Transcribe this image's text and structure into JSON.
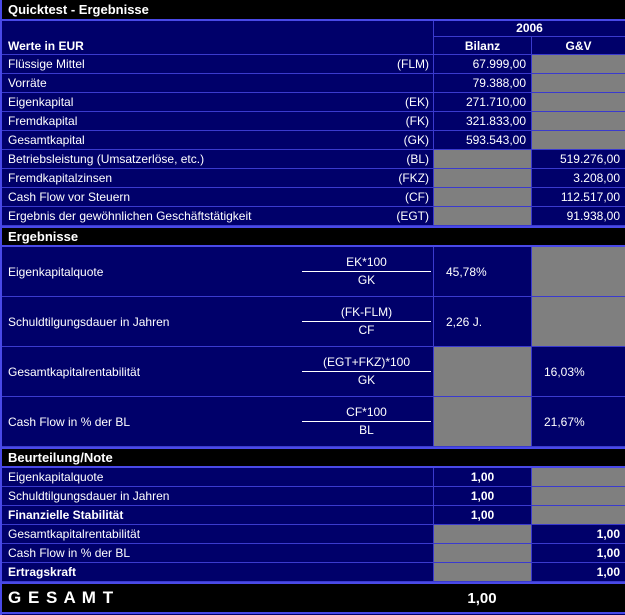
{
  "title": "Quicktest - Ergebnisse",
  "year": "2006",
  "columns": {
    "label": "Werte in EUR",
    "bilanz": "Bilanz",
    "gv": "G&V"
  },
  "werte_rows": [
    {
      "label": "Flüssige Mittel",
      "code": "(FLM)",
      "bilanz": "67.999,00",
      "gv": "",
      "gray": "gv"
    },
    {
      "label": "Vorräte",
      "code": "",
      "bilanz": "79.388,00",
      "gv": "",
      "gray": "gv"
    },
    {
      "label": "Eigenkapital",
      "code": "(EK)",
      "bilanz": "271.710,00",
      "gv": "",
      "gray": "gv"
    },
    {
      "label": "Fremdkapital",
      "code": "(FK)",
      "bilanz": "321.833,00",
      "gv": "",
      "gray": "gv"
    },
    {
      "label": "Gesamtkapital",
      "code": "(GK)",
      "bilanz": "593.543,00",
      "gv": "",
      "gray": "gv"
    },
    {
      "label": "Betriebsleistung (Umsatzerlöse, etc.)",
      "code": "(BL)",
      "bilanz": "",
      "gv": "519.276,00",
      "gray": "bilanz"
    },
    {
      "label": "Fremdkapitalzinsen",
      "code": "(FKZ)",
      "bilanz": "",
      "gv": "3.208,00",
      "gray": "bilanz"
    },
    {
      "label": "Cash Flow vor Steuern",
      "code": "(CF)",
      "bilanz": "",
      "gv": "112.517,00",
      "gray": "bilanz"
    },
    {
      "label": "Ergebnis der gewöhnlichen Geschäftstätigkeit",
      "code": "(EGT)",
      "bilanz": "",
      "gv": "91.938,00",
      "gray": "bilanz"
    }
  ],
  "ergebnisse": {
    "heading": "Ergebnisse",
    "rows": [
      {
        "label": "Eigenkapitalquote",
        "numerator": "EK*100",
        "denominator": "GK",
        "bilanz": "45,78%",
        "gv": "",
        "gray": "gv"
      },
      {
        "label": "Schuldtilgungsdauer in Jahren",
        "numerator": "(FK-FLM)",
        "denominator": "CF",
        "bilanz": "2,26 J.",
        "gv": "",
        "gray": "gv"
      },
      {
        "label": "Gesamtkapitalrentabilität",
        "numerator": "(EGT+FKZ)*100",
        "denominator": "GK",
        "bilanz": "",
        "gv": "16,03%",
        "gray": "bilanz"
      },
      {
        "label": "Cash Flow in % der BL",
        "numerator": "CF*100",
        "denominator": "BL",
        "bilanz": "",
        "gv": "21,67%",
        "gray": "bilanz"
      }
    ]
  },
  "beurteilung": {
    "heading": "Beurteilung/Note",
    "rows": [
      {
        "label": "Eigenkapitalquote",
        "bilanz": "1,00",
        "gv": "",
        "gray": "gv",
        "bold": "false"
      },
      {
        "label": "Schuldtilgungsdauer in Jahren",
        "bilanz": "1,00",
        "gv": "",
        "gray": "gv",
        "bold": "false"
      },
      {
        "label": "Finanzielle Stabilität",
        "bilanz": "1,00",
        "gv": "",
        "gray": "gv",
        "bold": "true"
      },
      {
        "label": "Gesamtkapitalrentabilität",
        "bilanz": "",
        "gv": "1,00",
        "gray": "bilanz",
        "bold": "false"
      },
      {
        "label": "Cash Flow in % der BL",
        "bilanz": "",
        "gv": "1,00",
        "gray": "bilanz",
        "bold": "false"
      },
      {
        "label": "Ertragskraft",
        "bilanz": "",
        "gv": "1,00",
        "gray": "bilanz",
        "bold": "true"
      }
    ]
  },
  "gesamt": {
    "label": "G E S A M T",
    "value": "1,00"
  },
  "colors": {
    "background": "#00006a",
    "band_background": "#000000",
    "grid_line": "#3a3ace",
    "accent_line": "#4949e8",
    "disabled_cell": "#7f7f7f",
    "text": "#ffffff"
  }
}
